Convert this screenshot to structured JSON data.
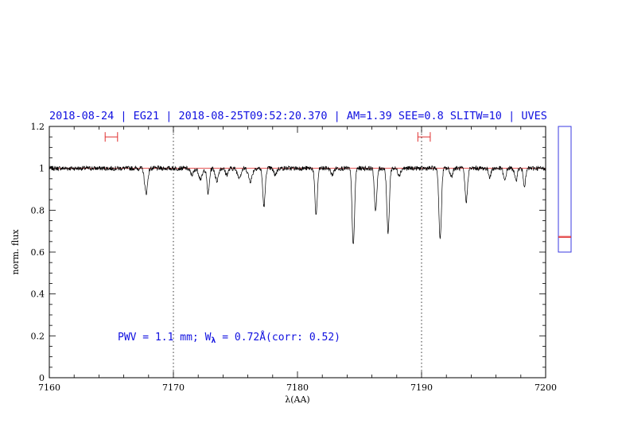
{
  "chart_data": {
    "type": "line",
    "title": "2018-08-24 | EG21 | 2018-08-25T09:52:20.370 | AM=1.39 SEE=0.8 SLITW=10 | UVES",
    "xlabel": "λ(AA)",
    "ylabel": "norm. flux",
    "xlim": [
      7160,
      7200
    ],
    "ylim": [
      0,
      1.2
    ],
    "x_ticks": [
      7160,
      7170,
      7180,
      7190,
      7200
    ],
    "x_tick_labels": [
      "7160",
      "7170",
      "7180",
      "7190",
      "7200"
    ],
    "y_ticks": [
      0,
      0.2,
      0.4,
      0.6,
      0.8,
      1,
      1.2
    ],
    "y_tick_labels": [
      "0",
      "0.2",
      "0.4",
      "0.6",
      "0.8",
      "1",
      "1.2"
    ],
    "vertical_dotted_lines": [
      7170,
      7190
    ],
    "reference_line": {
      "y": 1.0,
      "color": "#e03030"
    },
    "fit_windows": [
      {
        "x": [
          7164.5,
          7165.5
        ],
        "y": 1.15
      },
      {
        "x": [
          7189.7,
          7190.7
        ],
        "y": 1.15
      }
    ],
    "absorption_lines": [
      {
        "x": 7167.8,
        "depth": 0.12,
        "width": 0.12
      },
      {
        "x": 7171.5,
        "depth": 0.03,
        "width": 0.15
      },
      {
        "x": 7172.2,
        "depth": 0.05,
        "width": 0.15
      },
      {
        "x": 7172.8,
        "depth": 0.12,
        "width": 0.1
      },
      {
        "x": 7173.5,
        "depth": 0.06,
        "width": 0.12
      },
      {
        "x": 7174.3,
        "depth": 0.03,
        "width": 0.12
      },
      {
        "x": 7175.3,
        "depth": 0.04,
        "width": 0.15
      },
      {
        "x": 7176.2,
        "depth": 0.06,
        "width": 0.15
      },
      {
        "x": 7177.3,
        "depth": 0.18,
        "width": 0.1
      },
      {
        "x": 7178.2,
        "depth": 0.03,
        "width": 0.12
      },
      {
        "x": 7181.5,
        "depth": 0.22,
        "width": 0.1
      },
      {
        "x": 7182.8,
        "depth": 0.03,
        "width": 0.12
      },
      {
        "x": 7184.5,
        "depth": 0.37,
        "width": 0.1
      },
      {
        "x": 7186.3,
        "depth": 0.2,
        "width": 0.1
      },
      {
        "x": 7187.3,
        "depth": 0.31,
        "width": 0.1
      },
      {
        "x": 7188.2,
        "depth": 0.03,
        "width": 0.12
      },
      {
        "x": 7191.5,
        "depth": 0.34,
        "width": 0.1
      },
      {
        "x": 7192.4,
        "depth": 0.04,
        "width": 0.1
      },
      {
        "x": 7193.6,
        "depth": 0.16,
        "width": 0.1
      },
      {
        "x": 7195.5,
        "depth": 0.04,
        "width": 0.1
      },
      {
        "x": 7196.7,
        "depth": 0.06,
        "width": 0.1
      },
      {
        "x": 7197.6,
        "depth": 0.06,
        "width": 0.1
      },
      {
        "x": 7198.3,
        "depth": 0.08,
        "width": 0.1
      }
    ],
    "annotation": {
      "prefix": "PWV = 1.1 mm; W",
      "subscript": "λ",
      "suffix": " = 0.72Å(corr: 0.52)"
    },
    "side_gauge": {
      "range": [
        0,
        1.2
      ],
      "box_top": 1.2,
      "box_bottom": 0.6,
      "markers": [
        0.67,
        0.675
      ],
      "color": "#3a3ae0",
      "marker_color": "#e03030"
    },
    "colors": {
      "title": "#1010e0",
      "spectrum": "#000000",
      "reference": "#e03030"
    }
  }
}
